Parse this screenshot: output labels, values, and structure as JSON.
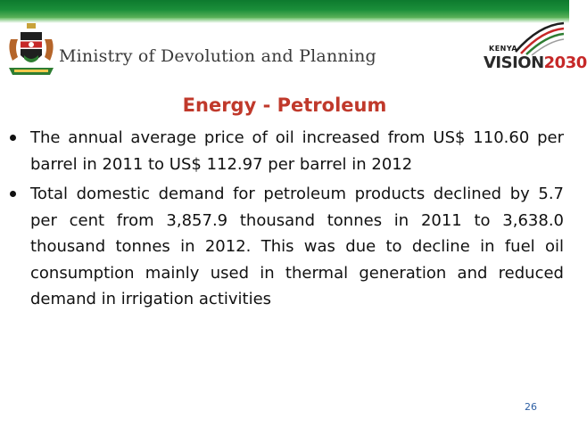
{
  "header": {
    "ministry": "Ministry of Devolution and Planning",
    "vision_logo": {
      "kenya": "KENYA",
      "word": "VISION",
      "year": "2030"
    }
  },
  "colors": {
    "banner_green": "#1b8f3a",
    "title_red": "#c0392b",
    "page_number_blue": "#2d5fa3"
  },
  "slide": {
    "title": "Energy - Petroleum",
    "bullets": [
      "The annual average price of oil increased from US$ 110.60 per barrel in 2011 to US$ 112.97 per barrel in 2012",
      "Total domestic demand for petroleum products declined by 5.7 per cent from 3,857.9 thousand tonnes in 2011 to 3,638.0 thousand tonnes in 2012. This was due to decline in fuel oil consumption mainly used in thermal generation and reduced demand in irrigation activities"
    ],
    "page_number": "26"
  }
}
